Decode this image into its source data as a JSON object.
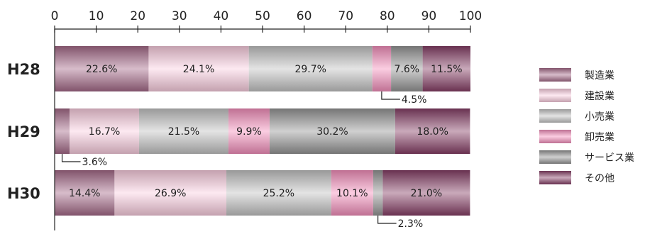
{
  "chart_data": {
    "type": "bar",
    "orientation": "horizontal",
    "stacked": true,
    "percent": true,
    "categories": [
      "H28",
      "H29",
      "H30"
    ],
    "xlim": [
      0,
      100
    ],
    "xticks": [
      "0",
      "10",
      "20",
      "30",
      "40",
      "50",
      "60",
      "70",
      "80",
      "90",
      "100"
    ],
    "legend_position": "right",
    "grid": false,
    "series": [
      {
        "name": "製造業",
        "values": [
          22.6,
          3.6,
          14.4
        ],
        "color": "#a56b89"
      },
      {
        "name": "建設業",
        "values": [
          24.1,
          16.7,
          26.9
        ],
        "color": "#fbcfe0"
      },
      {
        "name": "小売業",
        "values": [
          29.7,
          21.5,
          25.2
        ],
        "color": "#c4c4c4"
      },
      {
        "name": "卸売業",
        "values": [
          4.5,
          9.9,
          10.1
        ],
        "color": "#f58fbd"
      },
      {
        "name": "サービス業",
        "values": [
          7.6,
          30.2,
          2.3
        ],
        "color": "#969696"
      },
      {
        "name": "その他",
        "values": [
          11.5,
          18.0,
          21.0
        ],
        "color": "#873f66"
      }
    ],
    "labels": [
      [
        "22.6%",
        "24.1%",
        "29.7%",
        "",
        "7.6%",
        "11.5%"
      ],
      [
        "",
        "16.7%",
        "21.5%",
        "9.9%",
        "30.2%",
        "18.0%"
      ],
      [
        "14.4%",
        "26.9%",
        "25.2%",
        "10.1%",
        "",
        "21.0%"
      ]
    ],
    "callouts": [
      {
        "row": 0,
        "series": 3,
        "text": "4.5%"
      },
      {
        "row": 1,
        "series": 0,
        "text": "3.6%"
      },
      {
        "row": 2,
        "series": 4,
        "text": "2.3%"
      }
    ]
  }
}
